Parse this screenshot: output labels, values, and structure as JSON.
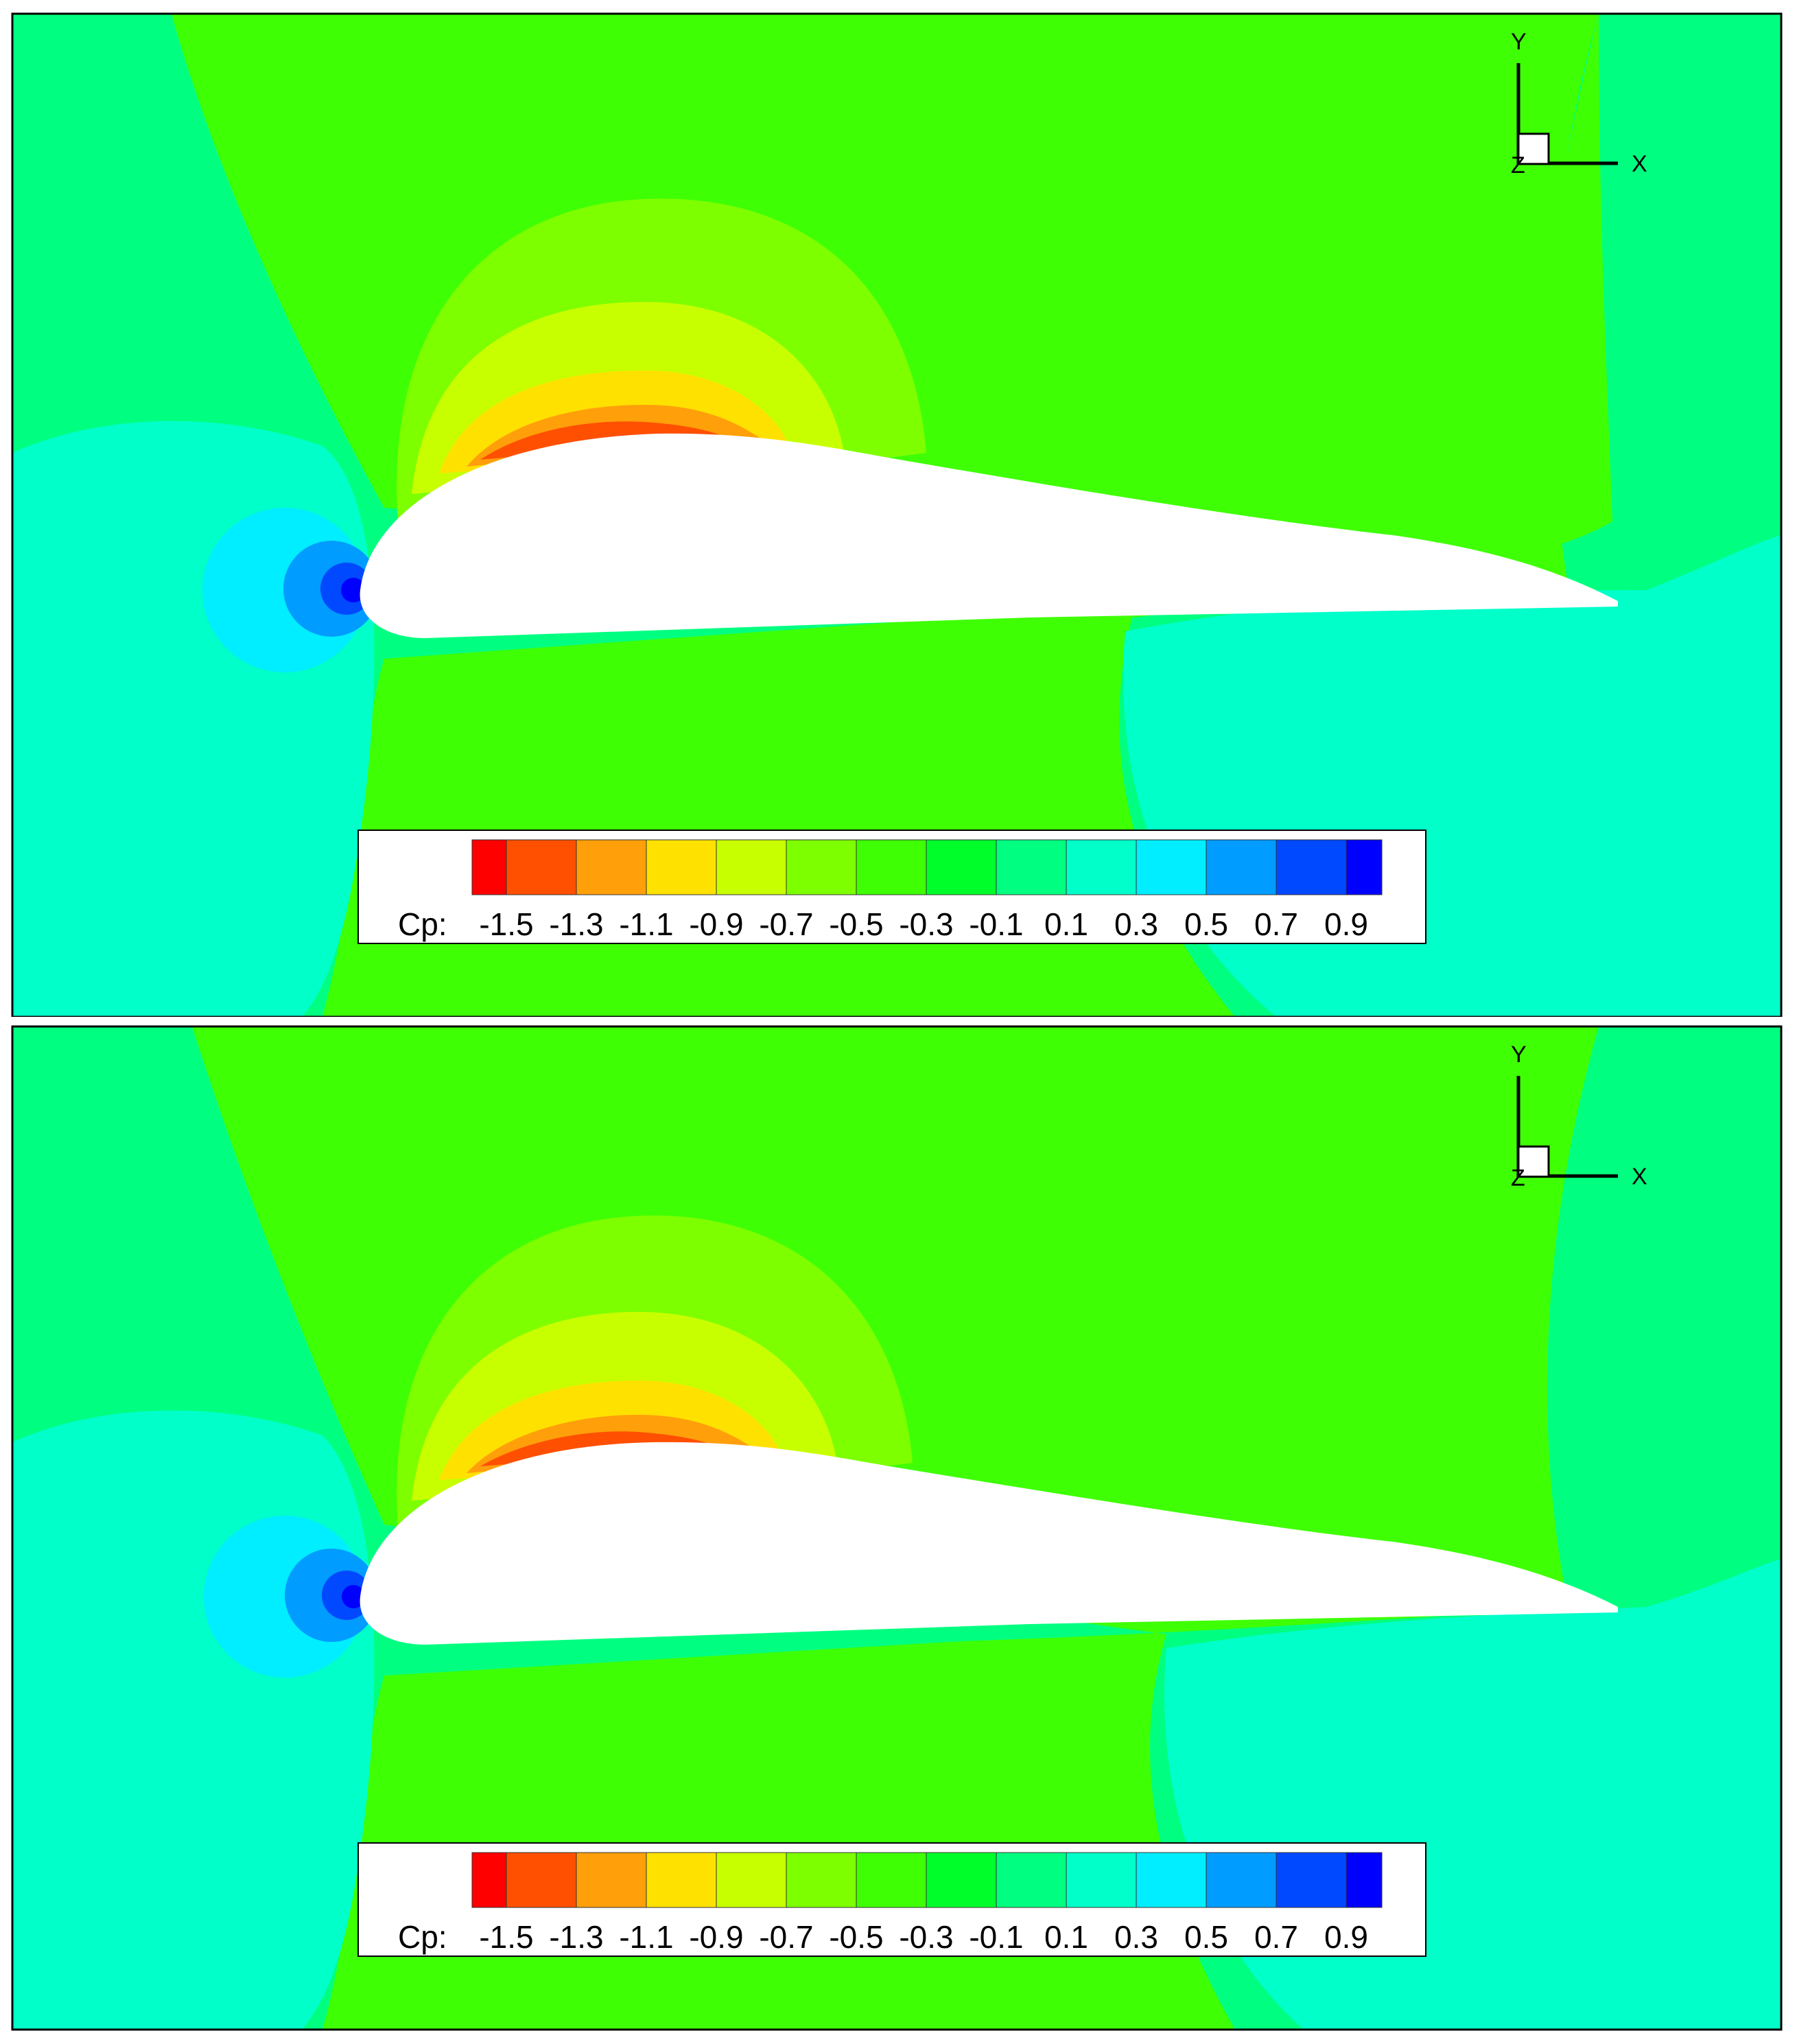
{
  "panels": [
    {
      "id": "top",
      "legend": {
        "variable_label": "Cp:",
        "tick_labels": [
          "-1.5",
          "-1.3",
          "-1.1",
          "-0.9",
          "-0.7",
          "-0.5",
          "-0.3",
          "-0.1",
          "0.1",
          "0.3",
          "0.5",
          "0.7",
          "0.9"
        ]
      },
      "axes": {
        "y_label": "Y",
        "x_label": "X",
        "z_label": "Z"
      }
    },
    {
      "id": "bottom",
      "legend": {
        "variable_label": "Cp:",
        "tick_labels": [
          "-1.5",
          "-1.3",
          "-1.1",
          "-0.9",
          "-0.7",
          "-0.5",
          "-0.3",
          "-0.1",
          "0.1",
          "0.3",
          "0.5",
          "0.7",
          "0.9"
        ]
      },
      "axes": {
        "y_label": "Y",
        "x_label": "X",
        "z_label": "Z"
      }
    }
  ],
  "colormap": [
    "#ff0000",
    "#ff4f00",
    "#ff9f0a",
    "#ffe100",
    "#c8ff00",
    "#7dff00",
    "#3fff05",
    "#00ff2a",
    "#00ff80",
    "#00ffc9",
    "#00eeff",
    "#009cff",
    "#0049ff",
    "#0000ff"
  ],
  "field_colors": {
    "far_field": "#00ff80",
    "mid_field": "#3fff05",
    "stagnation_1": "#00ffc9",
    "stagnation_2": "#00eeff",
    "stagnation_3": "#009cff",
    "stagnation_4": "#0049ff",
    "stagnation_5": "#0000ff",
    "suction_1": "#7dff00",
    "suction_2": "#c8ff00",
    "suction_3": "#ffe100",
    "suction_4": "#ff9f0a",
    "suction_5": "#ff4f00",
    "airfoil": "#ffffff"
  }
}
